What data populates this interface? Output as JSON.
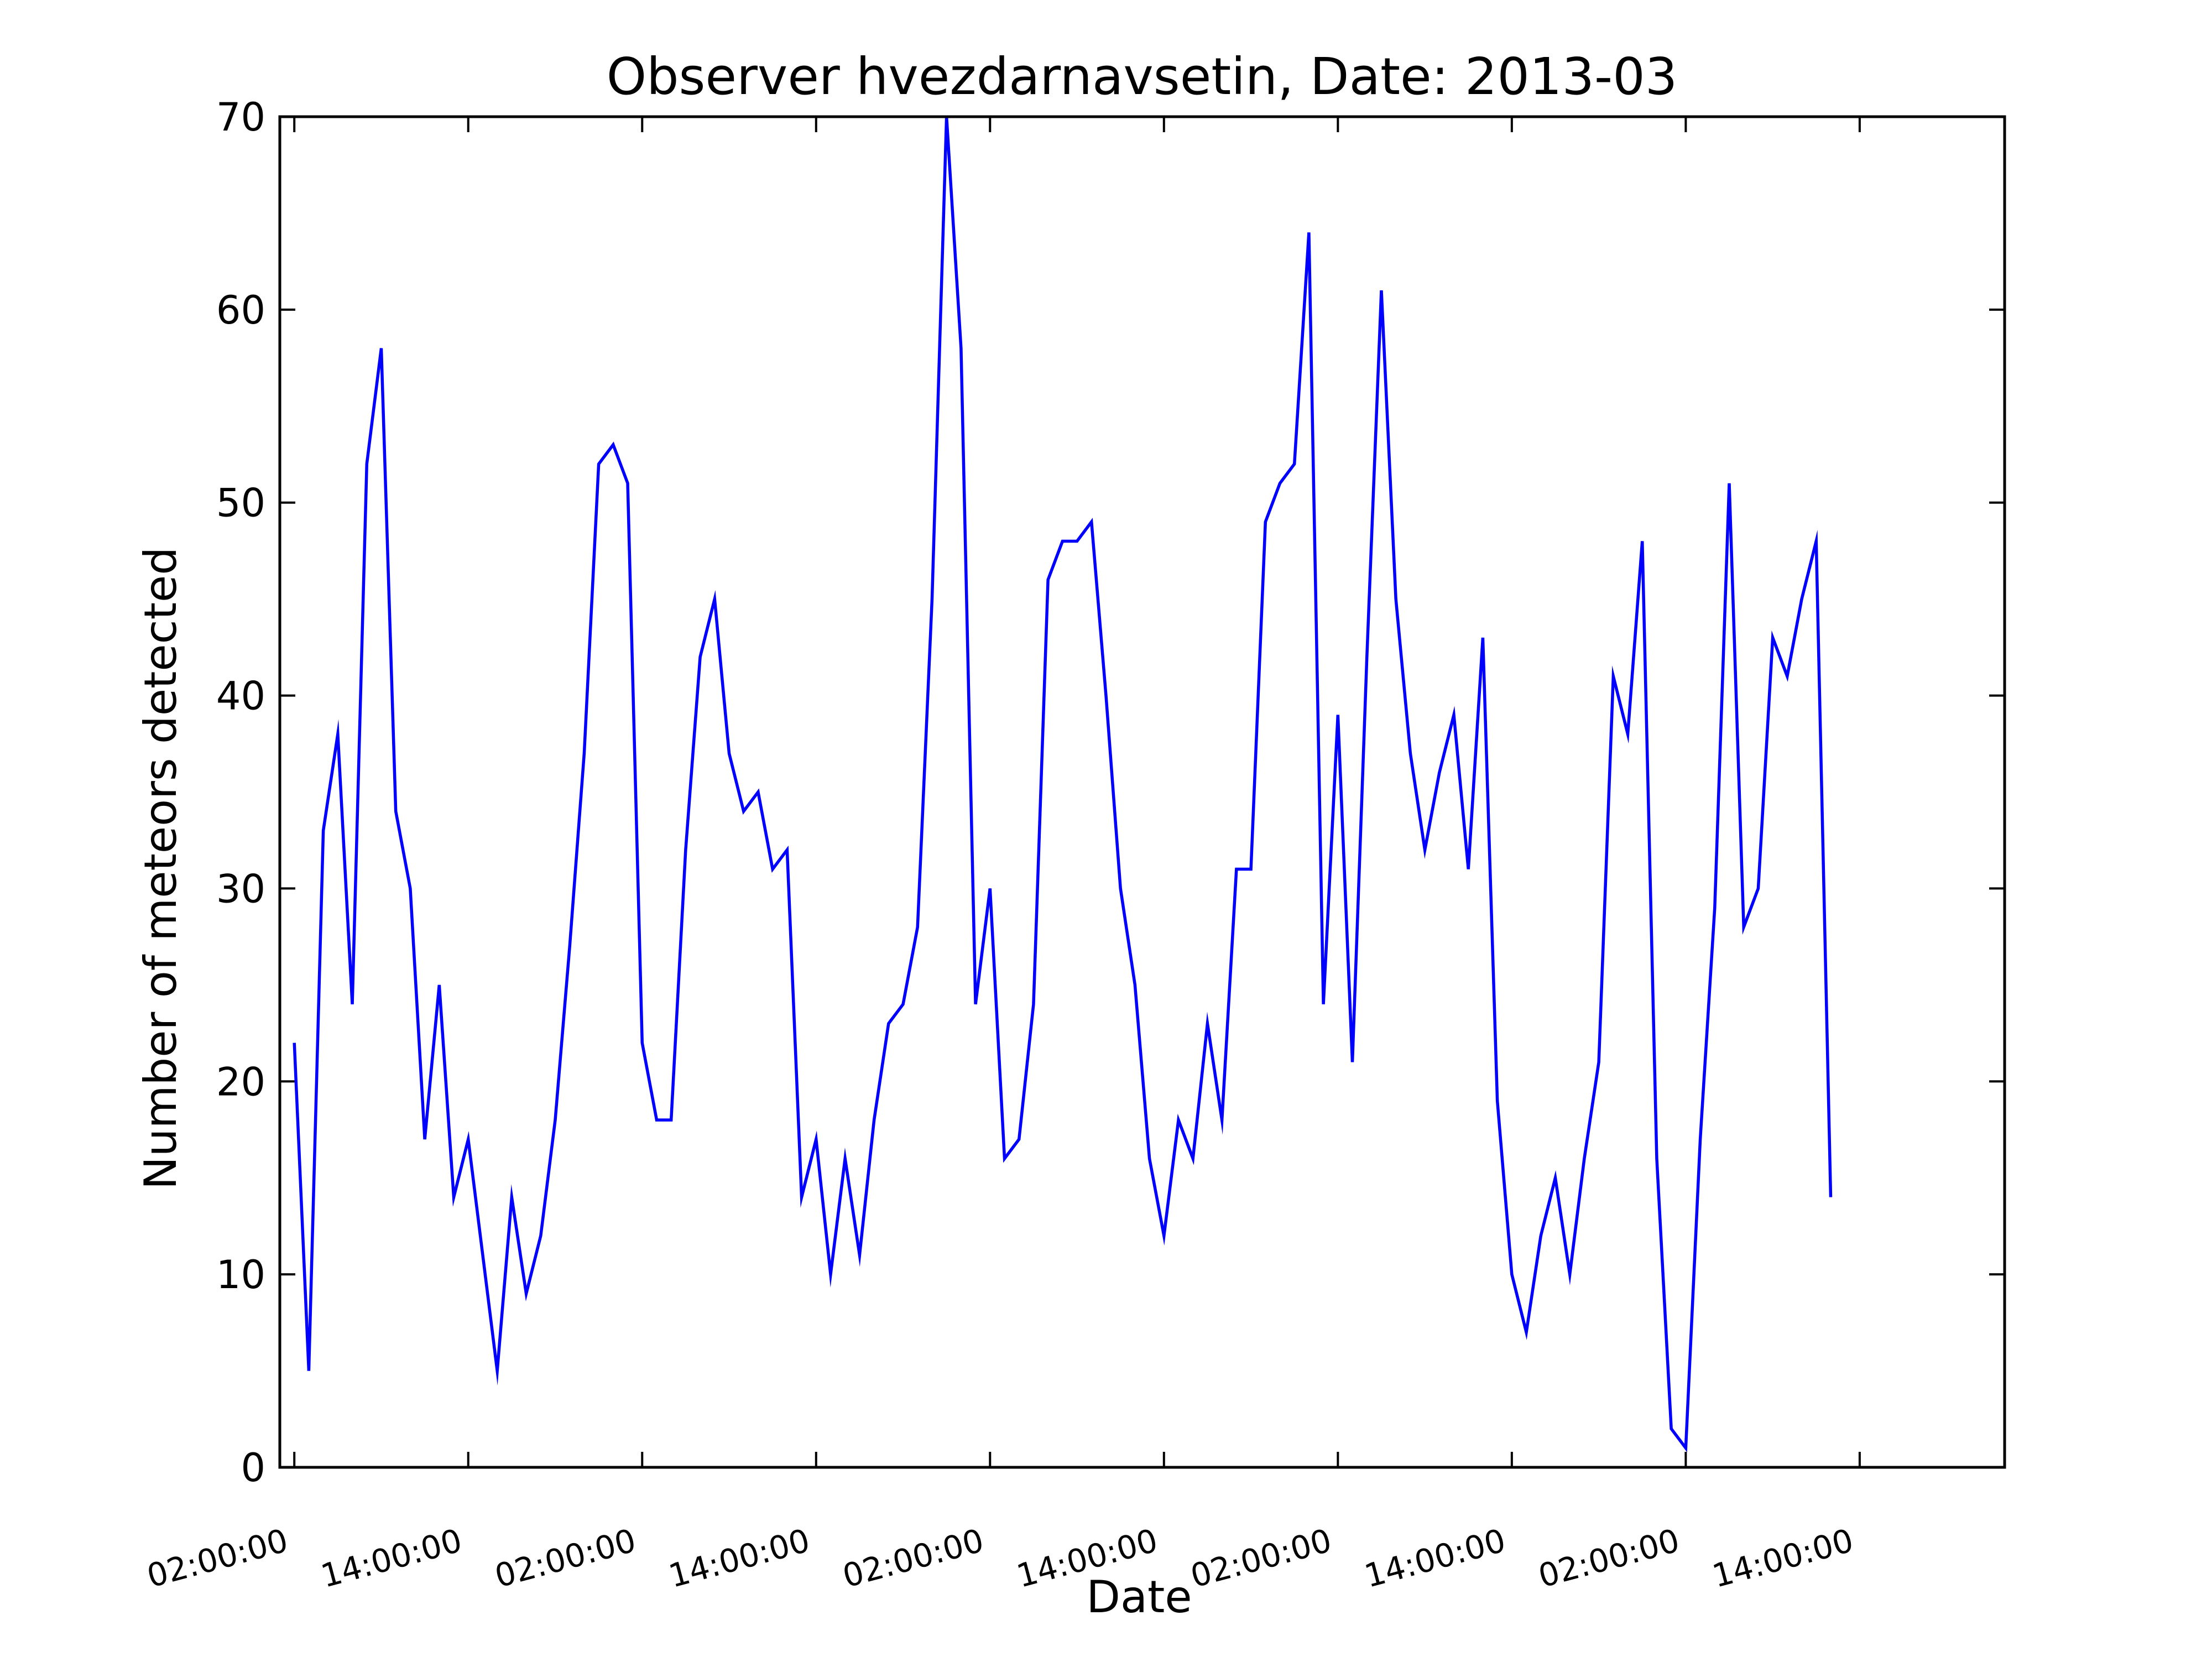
{
  "chart_data": {
    "type": "line",
    "title": "Observer hvezdarnavsetin, Date: 2013-03",
    "xlabel": "Date",
    "ylabel": "Number of meteors detected",
    "ylim": [
      0,
      70
    ],
    "yticks": [
      "0",
      "10",
      "20",
      "30",
      "40",
      "50",
      "60",
      "70"
    ],
    "x_unit": "hour",
    "x_range_hours": [
      -1,
      118
    ],
    "xtick_labels": [
      "02:00:00",
      "14:00:00",
      "02:00:00",
      "14:00:00",
      "02:00:00",
      "14:00:00",
      "02:00:00",
      "14:00:00",
      "02:00:00",
      "14:00:00"
    ],
    "grid": false,
    "line_color": "#0000ff",
    "series": [
      {
        "values": [
          22,
          5,
          33,
          38,
          24,
          52,
          58,
          34,
          30,
          17,
          25,
          14,
          17,
          11,
          5,
          14,
          9,
          12,
          18,
          27,
          37,
          52,
          53,
          51,
          22,
          18,
          18,
          32,
          42,
          45,
          37,
          34,
          35,
          31,
          32,
          14,
          17,
          10,
          16,
          11,
          18,
          23,
          24,
          28,
          45,
          70,
          58,
          24,
          30,
          16,
          17,
          24,
          46,
          48,
          48,
          49,
          40,
          30,
          25,
          16,
          12,
          18,
          16,
          23,
          18,
          31,
          31,
          49,
          51,
          52,
          64,
          24,
          39,
          21,
          42,
          61,
          45,
          37,
          32,
          36,
          39,
          31,
          43,
          19,
          10,
          7,
          12,
          15,
          10,
          16,
          21,
          41,
          38,
          48,
          16,
          2,
          1,
          17,
          29,
          51,
          28,
          30,
          43,
          41,
          45,
          48,
          14
        ]
      }
    ]
  }
}
